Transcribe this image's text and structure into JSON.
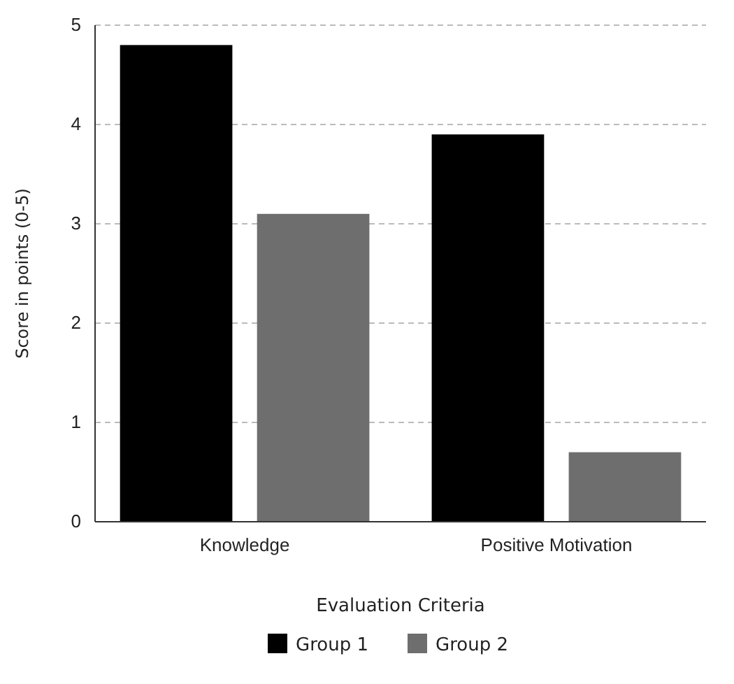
{
  "chart_data": {
    "type": "bar",
    "xlabel": "Evaluation Criteria",
    "ylabel": "Score in points (0-5)",
    "categories": [
      "Knowledge",
      "Positive Motivation"
    ],
    "series": [
      {
        "name": "Group 1",
        "color": "#000000",
        "values": [
          4.8,
          3.9
        ]
      },
      {
        "name": "Group 2",
        "color": "#6e6e6e",
        "values": [
          3.1,
          0.7
        ]
      }
    ],
    "ylim": [
      0,
      5
    ],
    "yticks": [
      0,
      1,
      2,
      3,
      4,
      5
    ],
    "grid": "y",
    "legend": "bottom"
  }
}
